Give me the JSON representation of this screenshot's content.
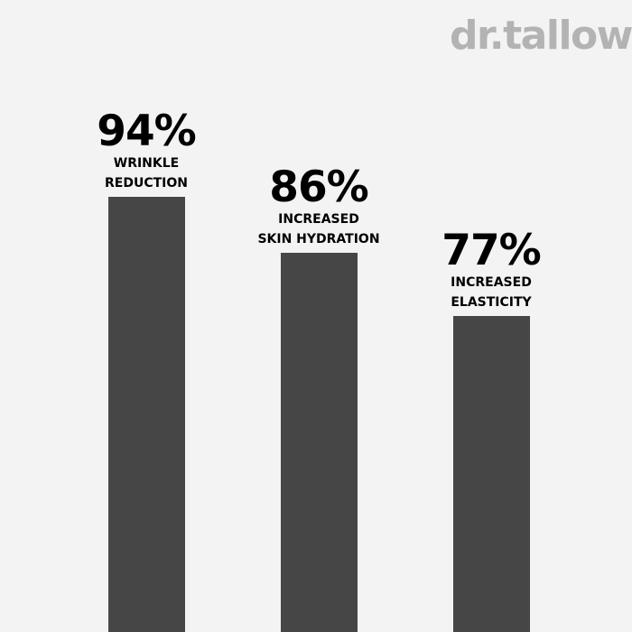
{
  "logo": "dr.tallow",
  "chart_data": {
    "type": "bar",
    "categories": [
      "WRINKLE REDUCTION",
      "INCREASED SKIN HYDRATION",
      "INCREASED ELASTICITY"
    ],
    "values": [
      94,
      86,
      77
    ],
    "value_labels": [
      "94%",
      "86%",
      "77%"
    ],
    "label_lines": [
      [
        "WRINKLE",
        "REDUCTION"
      ],
      [
        "INCREASED",
        "SKIN HYDRATION"
      ],
      [
        "INCREASED",
        "ELASTICITY"
      ]
    ],
    "bar_color": "#464646",
    "background": "#f3f3f3",
    "grid": false,
    "axes_visible": false
  }
}
